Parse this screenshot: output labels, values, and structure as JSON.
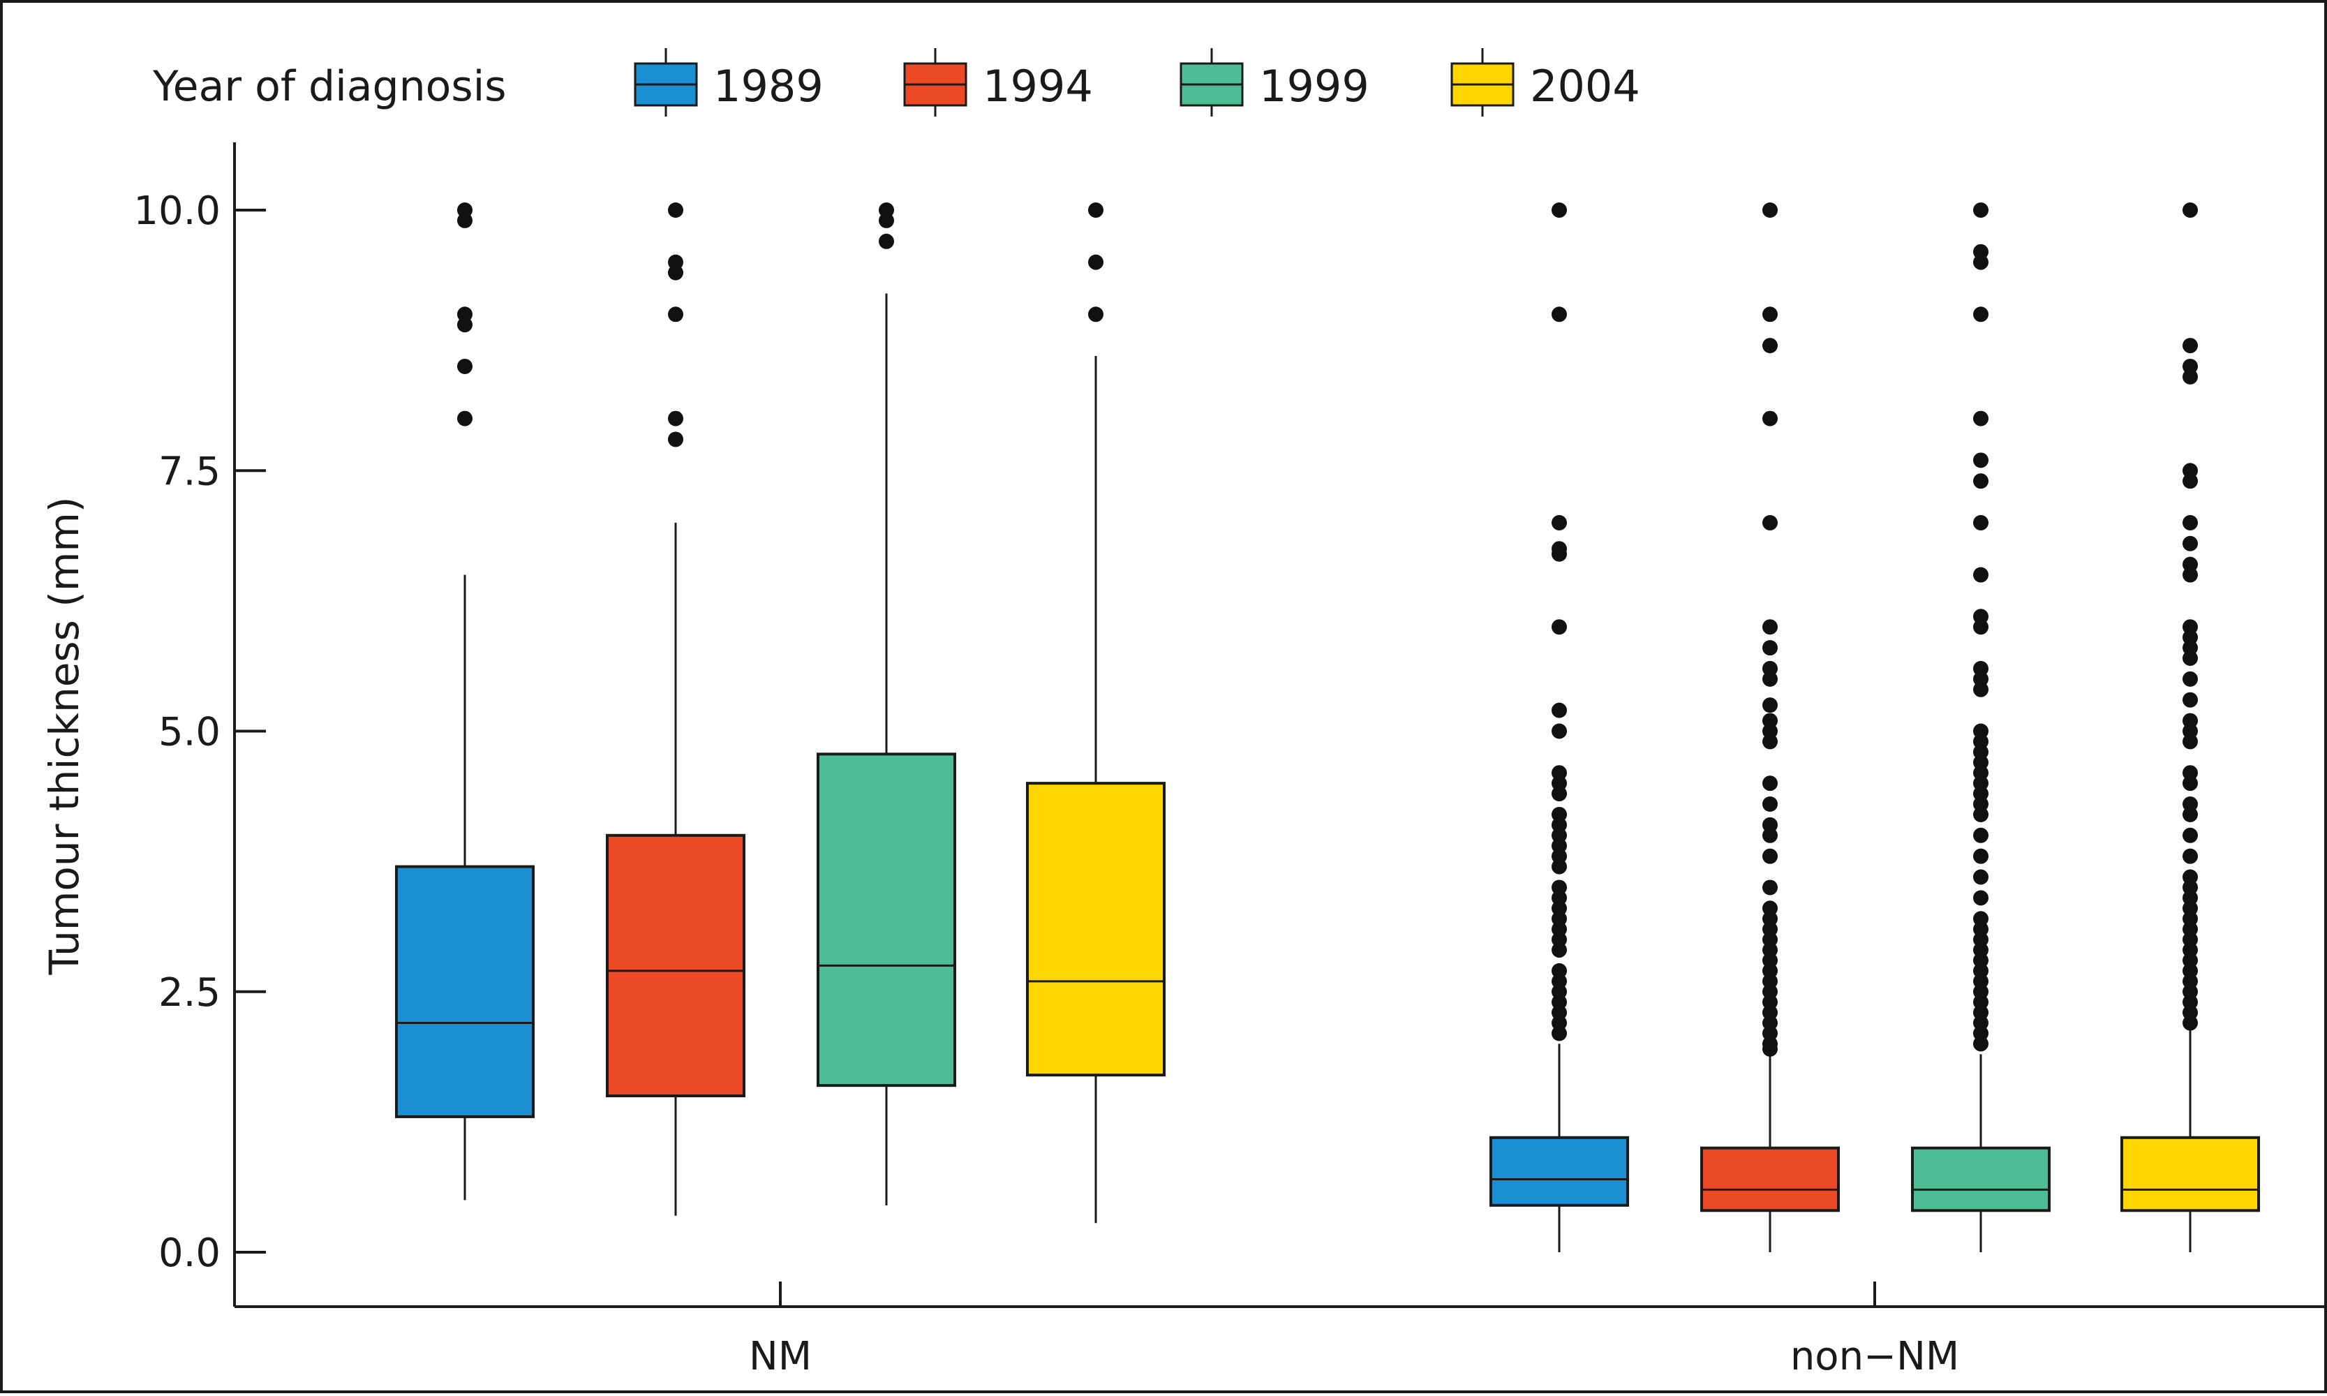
{
  "chart_data": {
    "type": "box",
    "ylabel": "Tumour thickness (mm)",
    "xlabel": "",
    "ylim": [
      -0.5,
      10.7
    ],
    "yticks": [
      "0.0",
      "2.5",
      "5.0",
      "7.5",
      "10.0"
    ],
    "grid": false,
    "legend_title": "Year of diagnosis",
    "legend_position": "top",
    "categories": [
      "NM",
      "non−NM"
    ],
    "series": [
      {
        "name": "1989",
        "color": "#1b8fd1",
        "boxes": [
          {
            "q1": 1.3,
            "median": 2.2,
            "q3": 3.7,
            "whisker_low": 0.5,
            "whisker_high": 6.5,
            "outliers": [
              8.0,
              8.5,
              8.9,
              9.0,
              9.9,
              10.0
            ]
          },
          {
            "q1": 0.45,
            "median": 0.7,
            "q3": 1.1,
            "whisker_low": 0.0,
            "whisker_high": 2.0,
            "outliers": [
              2.1,
              2.2,
              2.3,
              2.4,
              2.5,
              2.6,
              2.7,
              2.9,
              3.0,
              3.1,
              3.2,
              3.3,
              3.4,
              3.5,
              3.7,
              3.8,
              3.9,
              4.0,
              4.1,
              4.2,
              4.4,
              4.5,
              4.6,
              5.0,
              5.2,
              6.0,
              6.7,
              6.75,
              7.0,
              9.0,
              10.0
            ]
          }
        ]
      },
      {
        "name": "1994",
        "color": "#ec4a26",
        "boxes": [
          {
            "q1": 1.5,
            "median": 2.7,
            "q3": 4.0,
            "whisker_low": 0.35,
            "whisker_high": 7.0,
            "outliers": [
              7.8,
              8.0,
              9.0,
              9.4,
              9.5,
              10.0
            ]
          },
          {
            "q1": 0.4,
            "median": 0.6,
            "q3": 1.0,
            "whisker_low": 0.0,
            "whisker_high": 1.9,
            "outliers": [
              1.95,
              2.0,
              2.1,
              2.2,
              2.3,
              2.4,
              2.5,
              2.6,
              2.7,
              2.8,
              2.9,
              3.0,
              3.1,
              3.2,
              3.3,
              3.5,
              3.8,
              4.0,
              4.1,
              4.3,
              4.5,
              4.9,
              5.0,
              5.1,
              5.25,
              5.5,
              5.6,
              5.8,
              6.0,
              7.0,
              8.0,
              8.7,
              9.0,
              10.0
            ]
          }
        ]
      },
      {
        "name": "1999",
        "color": "#4dbd96",
        "boxes": [
          {
            "q1": 1.6,
            "median": 2.75,
            "q3": 4.78,
            "whisker_low": 0.45,
            "whisker_high": 9.2,
            "outliers": [
              9.7,
              9.9,
              10.0
            ]
          },
          {
            "q1": 0.4,
            "median": 0.6,
            "q3": 1.0,
            "whisker_low": 0.0,
            "whisker_high": 1.9,
            "outliers": [
              2.0,
              2.1,
              2.2,
              2.3,
              2.4,
              2.5,
              2.6,
              2.7,
              2.8,
              2.9,
              3.0,
              3.1,
              3.2,
              3.4,
              3.6,
              3.8,
              4.0,
              4.2,
              4.3,
              4.4,
              4.5,
              4.6,
              4.7,
              4.8,
              4.9,
              5.0,
              5.4,
              5.5,
              5.6,
              6.0,
              6.1,
              6.5,
              7.0,
              7.4,
              7.6,
              8.0,
              9.0,
              9.5,
              9.6,
              10.0
            ]
          }
        ]
      },
      {
        "name": "2004",
        "color": "#fdd500",
        "boxes": [
          {
            "q1": 1.7,
            "median": 2.6,
            "q3": 4.5,
            "whisker_low": 0.28,
            "whisker_high": 8.6,
            "outliers": [
              9.0,
              9.5,
              10.0
            ]
          },
          {
            "q1": 0.4,
            "median": 0.6,
            "q3": 1.1,
            "whisker_low": 0.0,
            "whisker_high": 2.15,
            "outliers": [
              2.2,
              2.3,
              2.4,
              2.5,
              2.6,
              2.7,
              2.8,
              2.9,
              3.0,
              3.1,
              3.2,
              3.3,
              3.4,
              3.5,
              3.6,
              3.8,
              4.0,
              4.2,
              4.3,
              4.5,
              4.6,
              4.9,
              5.0,
              5.1,
              5.3,
              5.5,
              5.7,
              5.8,
              5.9,
              6.0,
              6.5,
              6.6,
              6.8,
              7.0,
              7.4,
              7.5,
              8.4,
              8.5,
              8.7,
              10.0
            ]
          }
        ]
      }
    ]
  }
}
